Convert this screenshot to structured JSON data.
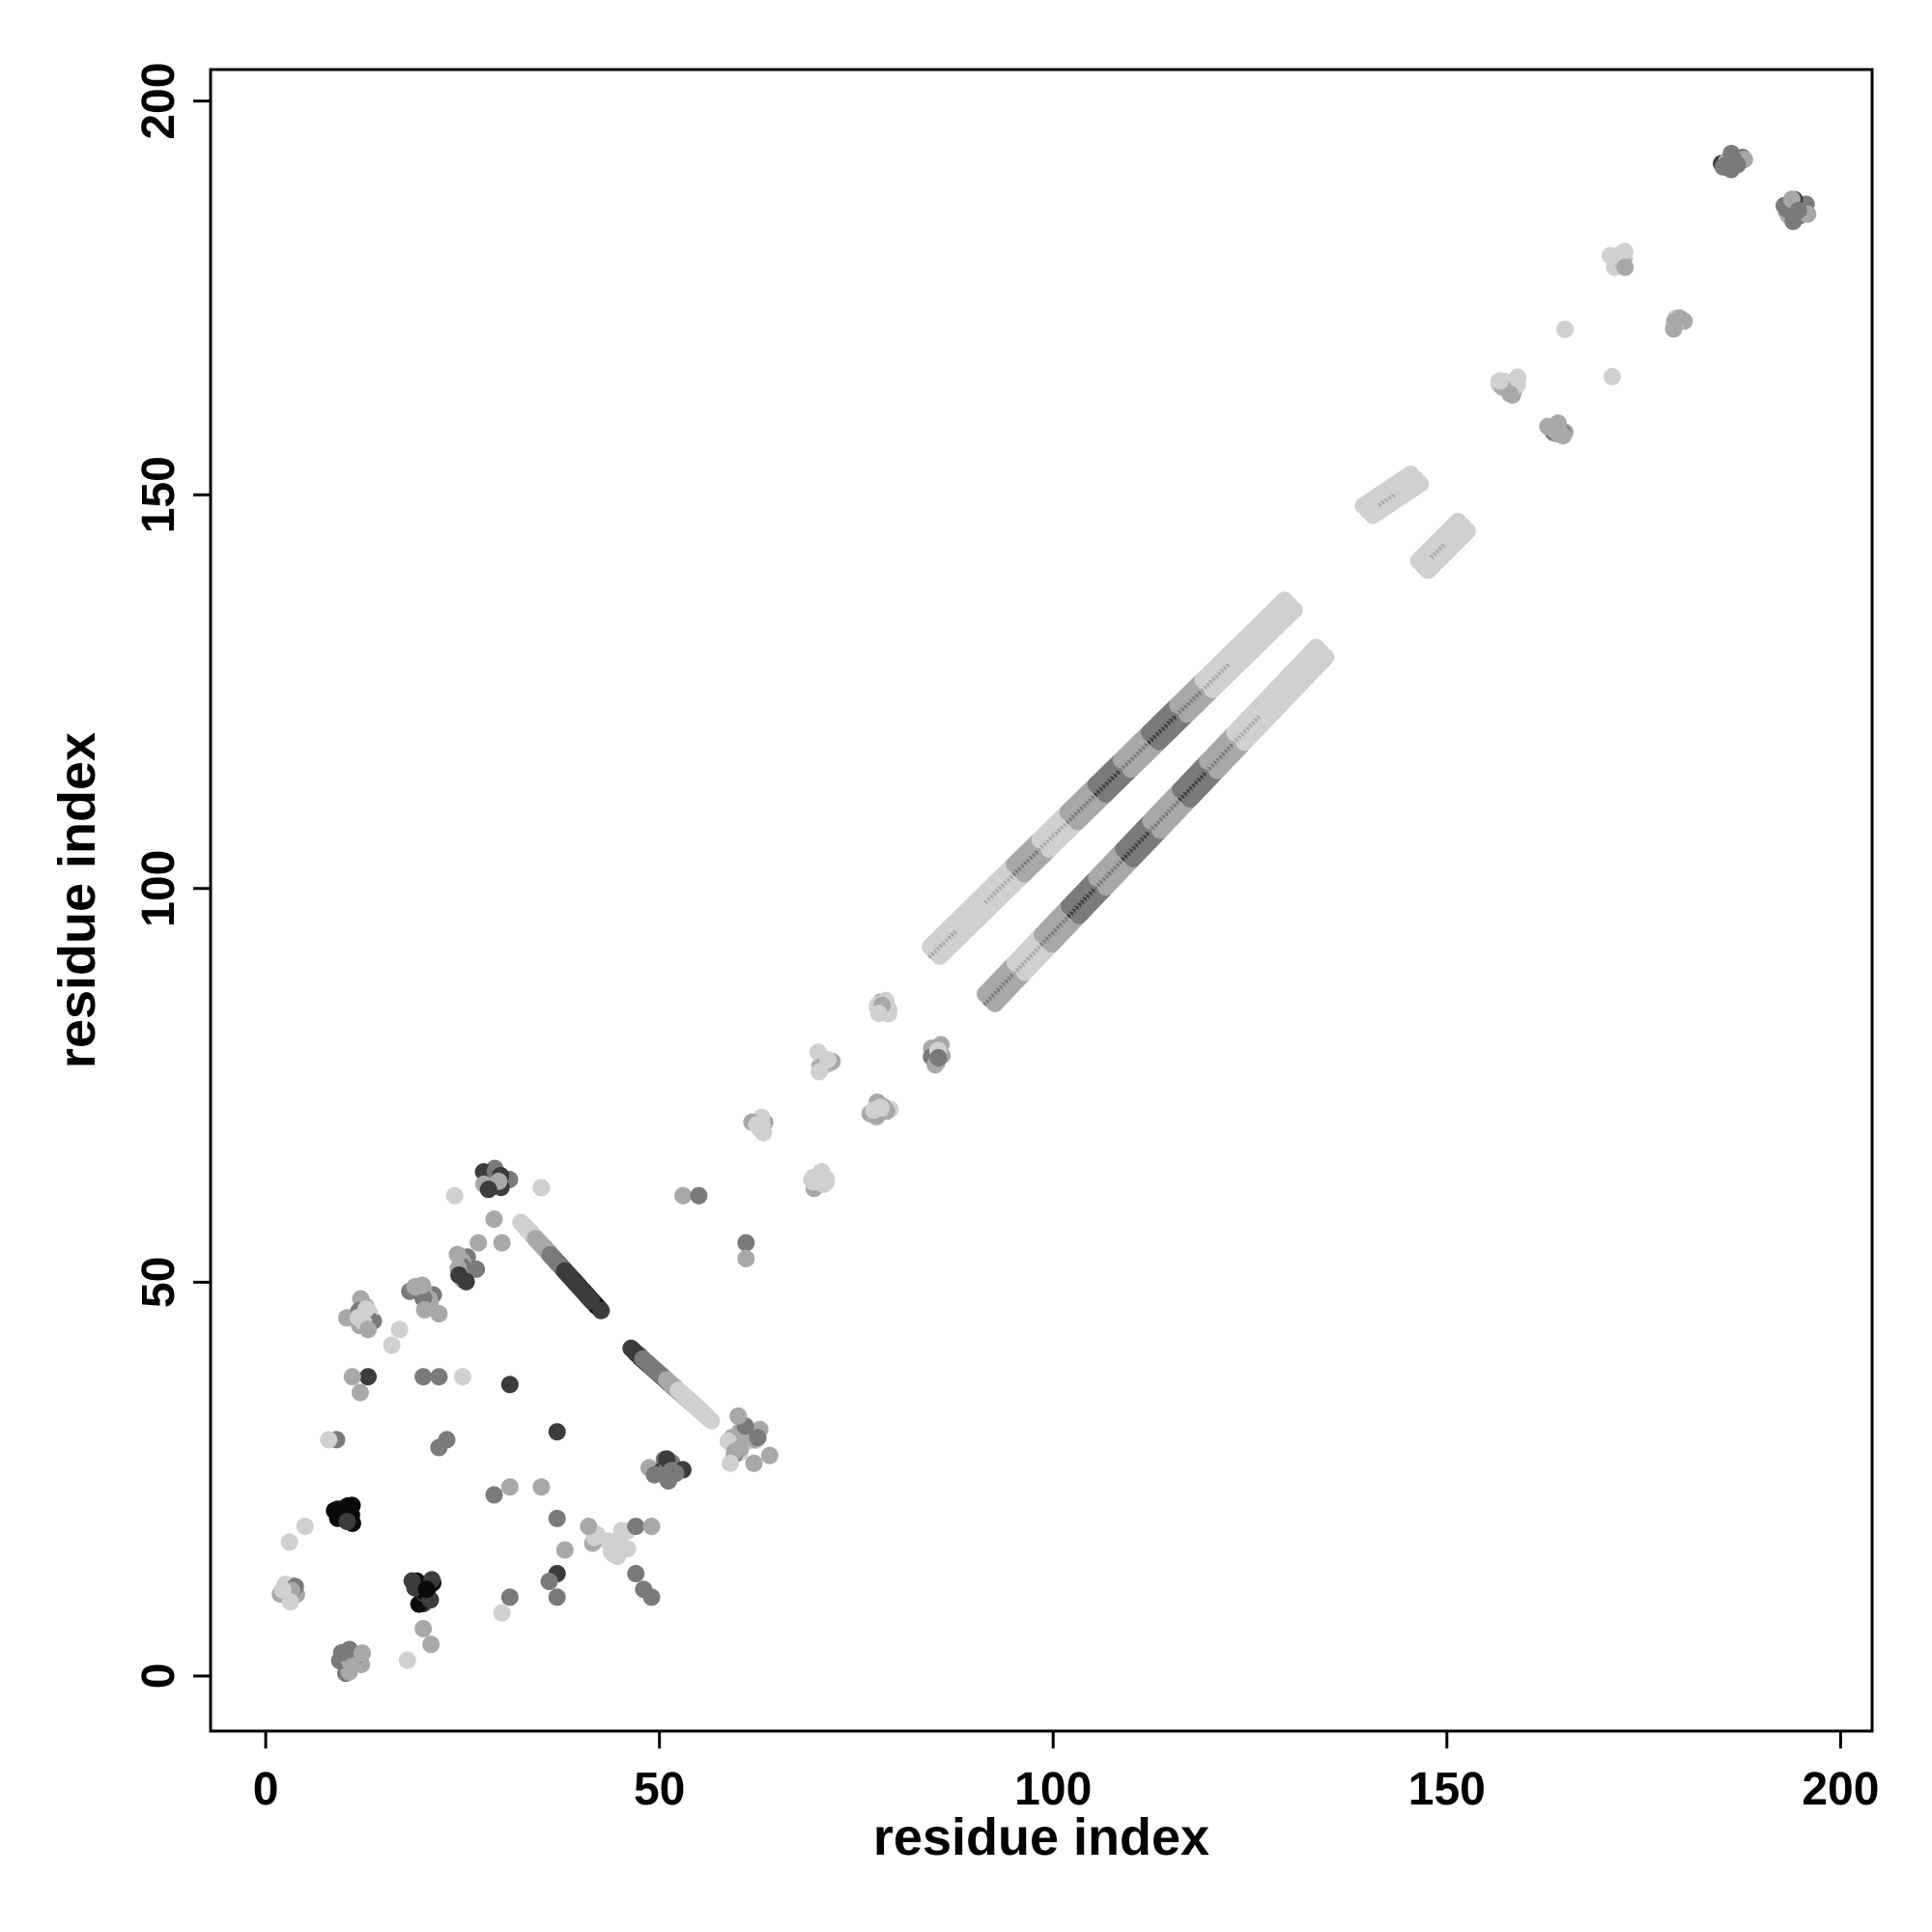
{
  "chart_data": {
    "type": "scatter",
    "title": "",
    "xlabel": "residue index",
    "ylabel": "residue index",
    "xlim": [
      -7,
      204
    ],
    "ylim": [
      -7,
      204
    ],
    "xticks": [
      0,
      50,
      100,
      150,
      200
    ],
    "yticks": [
      0,
      50,
      100,
      150,
      200
    ],
    "grid": false,
    "legend": "none",
    "marker_colors": [
      "#0a0a0a",
      "#3c3c3c",
      "#7a7a7a",
      "#a8a8a8",
      "#d0d0d0"
    ],
    "segments": [
      {
        "x0": 85,
        "y0": 92,
        "x1": 130,
        "y1": 136,
        "step": 0.5,
        "levels": [
          3,
          4,
          3,
          2,
          3,
          2,
          1,
          2,
          1,
          2,
          3,
          4,
          4
        ]
      },
      {
        "x0": 92,
        "y0": 86,
        "x1": 134,
        "y1": 130,
        "step": 0.5,
        "levels": [
          2,
          3,
          2,
          1,
          2,
          1,
          2,
          1,
          2,
          3,
          4,
          4
        ]
      },
      {
        "x0": 140,
        "y0": 148,
        "x1": 146,
        "y1": 152,
        "step": 0.5,
        "levels": [
          4,
          3,
          4
        ]
      },
      {
        "x0": 147,
        "y0": 141,
        "x1": 152,
        "y1": 146,
        "step": 0.5,
        "levels": [
          4,
          3,
          4
        ]
      },
      {
        "x0": 33,
        "y0": 57,
        "x1": 42,
        "y1": 47,
        "step": 0.4,
        "levels": [
          3,
          2,
          1,
          0,
          0
        ]
      },
      {
        "x0": 47,
        "y0": 41,
        "x1": 56,
        "y1": 33,
        "step": 0.4,
        "levels": [
          0,
          1,
          1,
          2,
          3,
          4
        ]
      }
    ],
    "clusters": [
      {
        "x": 186,
        "y": 192,
        "r": 2,
        "level": 2
      },
      {
        "x": 194,
        "y": 186,
        "r": 2,
        "level": 2
      },
      {
        "x": 172,
        "y": 180,
        "r": 1.5,
        "level": 4
      },
      {
        "x": 179,
        "y": 172,
        "r": 1.5,
        "level": 3
      },
      {
        "x": 158,
        "y": 164,
        "r": 1.5,
        "level": 3
      },
      {
        "x": 164,
        "y": 158,
        "r": 1.5,
        "level": 3
      },
      {
        "x": 78,
        "y": 85,
        "r": 1.5,
        "level": 4
      },
      {
        "x": 85,
        "y": 79,
        "r": 1.5,
        "level": 3
      },
      {
        "x": 71,
        "y": 78,
        "r": 1.5,
        "level": 4
      },
      {
        "x": 78,
        "y": 72,
        "r": 1.5,
        "level": 4
      },
      {
        "x": 63,
        "y": 70,
        "r": 1.5,
        "level": 4
      },
      {
        "x": 70,
        "y": 63,
        "r": 1.5,
        "level": 4
      },
      {
        "x": 29,
        "y": 63,
        "r": 2,
        "level": 2
      },
      {
        "x": 25,
        "y": 52,
        "r": 2,
        "level": 2
      },
      {
        "x": 10,
        "y": 21,
        "r": 2,
        "level": 0
      },
      {
        "x": 20,
        "y": 11,
        "r": 2,
        "level": 0
      },
      {
        "x": 3,
        "y": 11,
        "r": 2,
        "level": 3
      },
      {
        "x": 11,
        "y": 2,
        "r": 2,
        "level": 2
      },
      {
        "x": 51,
        "y": 26,
        "r": 2.5,
        "level": 2
      },
      {
        "x": 61,
        "y": 30,
        "r": 2.5,
        "level": 3
      },
      {
        "x": 44,
        "y": 17,
        "r": 2.5,
        "level": 4
      },
      {
        "x": 20,
        "y": 48,
        "r": 2,
        "level": 2
      },
      {
        "x": 12,
        "y": 46,
        "r": 2,
        "level": 3
      }
    ],
    "points": [
      [
        165,
        171,
        4
      ],
      [
        171,
        165,
        4
      ],
      [
        53,
        61,
        3
      ],
      [
        55,
        61,
        2
      ],
      [
        61,
        55,
        2
      ],
      [
        61,
        53,
        3
      ],
      [
        31,
        37,
        1
      ],
      [
        37,
        31,
        1
      ],
      [
        31,
        24,
        3
      ],
      [
        29,
        23,
        2
      ],
      [
        31,
        10,
        2
      ],
      [
        30,
        8,
        4
      ],
      [
        37,
        13,
        1
      ],
      [
        37,
        10,
        2
      ],
      [
        36,
        12,
        2
      ],
      [
        41,
        19,
        3
      ],
      [
        47,
        13,
        2
      ],
      [
        48,
        11,
        2
      ],
      [
        49,
        10,
        2
      ],
      [
        47,
        19,
        2
      ],
      [
        49,
        19,
        3
      ],
      [
        25,
        38,
        4
      ],
      [
        22,
        38,
        2
      ],
      [
        20,
        38,
        2
      ],
      [
        13,
        38,
        1
      ],
      [
        11,
        38,
        3
      ],
      [
        9,
        30,
        2
      ],
      [
        8,
        30,
        4
      ],
      [
        23,
        30,
        2
      ],
      [
        22,
        29,
        2
      ],
      [
        5,
        19,
        4
      ],
      [
        3,
        17,
        4
      ],
      [
        21,
        4,
        3
      ],
      [
        20,
        6,
        3
      ],
      [
        18,
        2,
        4
      ],
      [
        16,
        42,
        4
      ],
      [
        17,
        44,
        4
      ],
      [
        35,
        24,
        3
      ],
      [
        37,
        20,
        2
      ],
      [
        38,
        16,
        3
      ],
      [
        60,
        33,
        3
      ],
      [
        62,
        27,
        3
      ],
      [
        64,
        28,
        3
      ],
      [
        59,
        27,
        4
      ],
      [
        29,
        58,
        3
      ],
      [
        30,
        55,
        3
      ],
      [
        27,
        55,
        3
      ],
      [
        22,
        46,
        3
      ],
      [
        35,
        62,
        4
      ],
      [
        24,
        61,
        4
      ],
      [
        13,
        44,
        3
      ],
      [
        12,
        36,
        3
      ]
    ]
  }
}
